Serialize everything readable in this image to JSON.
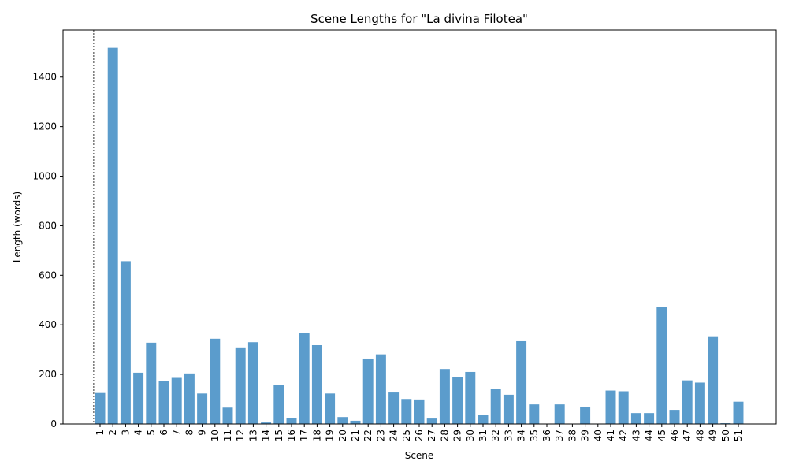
{
  "chart_data": {
    "type": "bar",
    "title": "Scene Lengths for \"La divina Filotea\"",
    "xlabel": "Scene",
    "ylabel": "Length (words)",
    "ylim": [
      0,
      1590
    ],
    "yticks": [
      0,
      200,
      400,
      600,
      800,
      1000,
      1200,
      1400
    ],
    "categories": [
      "1",
      "2",
      "3",
      "4",
      "5",
      "6",
      "7",
      "8",
      "9",
      "10",
      "11",
      "12",
      "13",
      "14",
      "15",
      "16",
      "17",
      "18",
      "19",
      "20",
      "21",
      "22",
      "23",
      "24",
      "25",
      "26",
      "27",
      "28",
      "29",
      "30",
      "31",
      "32",
      "33",
      "34",
      "35",
      "36",
      "37",
      "38",
      "39",
      "40",
      "41",
      "42",
      "43",
      "44",
      "45",
      "46",
      "47",
      "48",
      "49",
      "50",
      "51"
    ],
    "values": [
      125,
      1518,
      657,
      207,
      328,
      172,
      186,
      204,
      123,
      344,
      66,
      309,
      330,
      6,
      156,
      25,
      366,
      318,
      123,
      28,
      13,
      264,
      281,
      127,
      101,
      99,
      22,
      222,
      189,
      210,
      38,
      140,
      118,
      334,
      79,
      0,
      79,
      0,
      70,
      0,
      135,
      132,
      44,
      44,
      472,
      57,
      176,
      167,
      354,
      3,
      90
    ],
    "bar_color": "#5b9ccc",
    "grid": false,
    "act_divider_before_scene": "1"
  }
}
